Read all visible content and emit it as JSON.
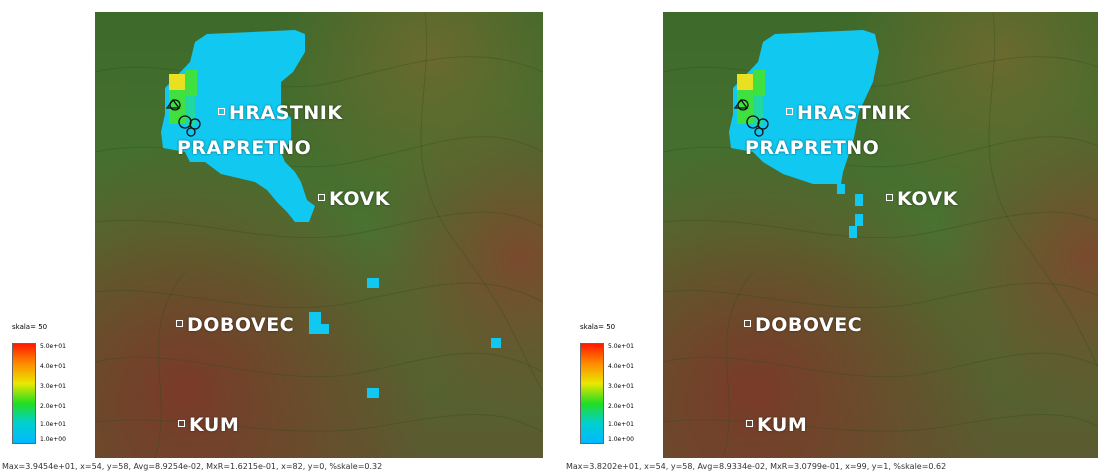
{
  "panels": [
    {
      "legend": {
        "skala_label": "skala= 50",
        "ticks": [
          "5.0e+01",
          "4.0e+01",
          "3.0e+01",
          "2.0e+01",
          "1.0e+01",
          "1.0e+00"
        ]
      },
      "towns": [
        {
          "name": "HRASTNIK"
        },
        {
          "name": "PRAPRETNO"
        },
        {
          "name": "KOVK"
        },
        {
          "name": "DOBOVEC"
        },
        {
          "name": "KUM"
        }
      ],
      "caption": "Max=3.9454e+01, x=54, y=58, Avg=8.9254e-02, MxR=1.6215e-01, x=82, y=0, %skale=0.32"
    },
    {
      "legend": {
        "skala_label": "skala= 50",
        "ticks": [
          "5.0e+01",
          "4.0e+01",
          "3.0e+01",
          "2.0e+01",
          "1.0e+01",
          "1.0e+00"
        ]
      },
      "towns": [
        {
          "name": "HRASTNIK"
        },
        {
          "name": "PRAPRETNO"
        },
        {
          "name": "KOVK"
        },
        {
          "name": "DOBOVEC"
        },
        {
          "name": "KUM"
        }
      ],
      "caption": "Max=3.8202e+01, x=54, y=58, Avg=8.9334e-02, MxR=3.0799e-01, x=99, y=1, %skale=0.62"
    }
  ],
  "colors": {
    "terrain_dark_green": "#3f6a2a",
    "terrain_brown": "#7a4a2e",
    "plume_cyan": "#10c8f0",
    "plume_yellow": "#e8e020",
    "plume_green": "#40e040"
  }
}
